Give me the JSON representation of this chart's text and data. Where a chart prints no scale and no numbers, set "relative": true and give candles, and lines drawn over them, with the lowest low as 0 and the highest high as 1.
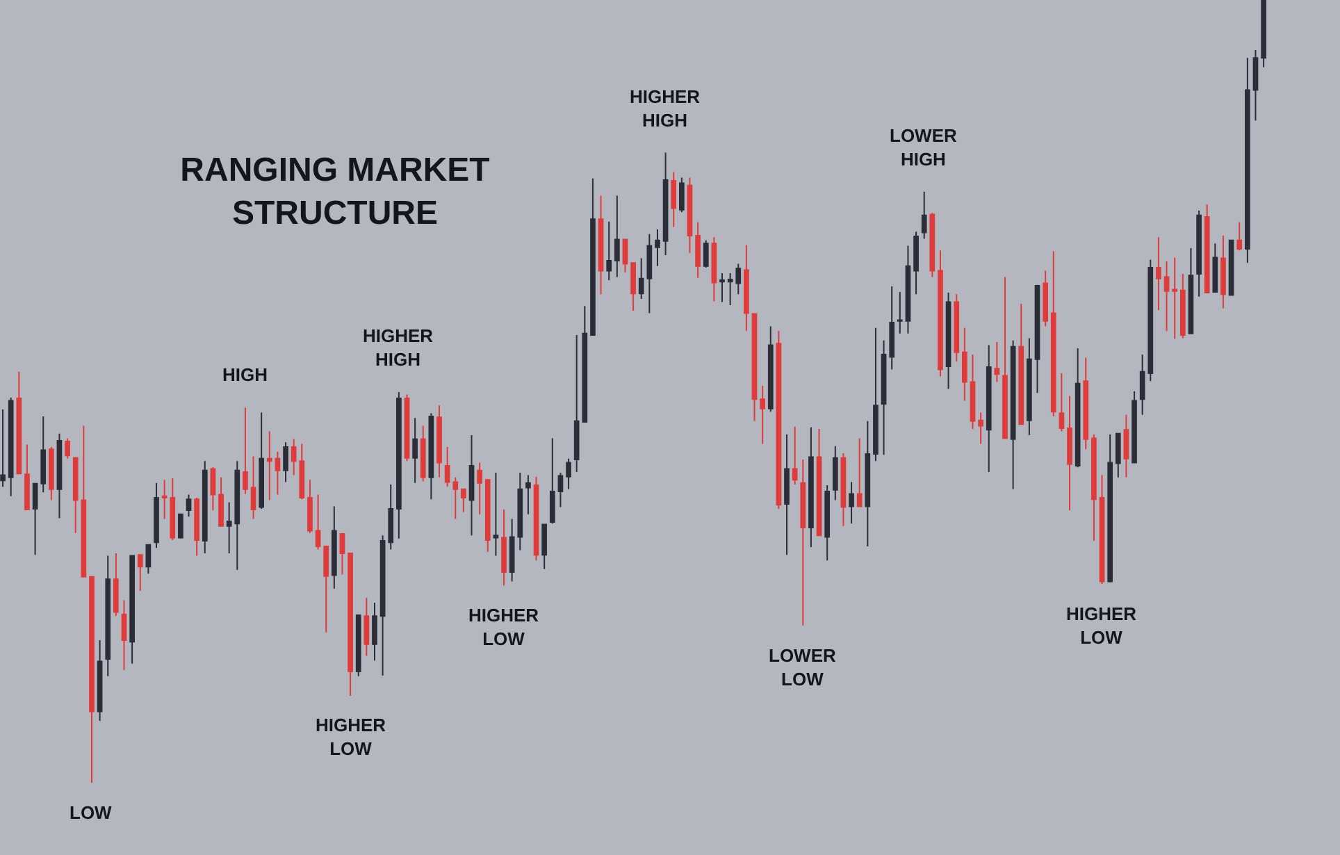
{
  "chart_data": {
    "type": "candlestick",
    "title": "RANGING MARKET\nSTRUCTURE",
    "relative": true,
    "categories": [
      null,
      null,
      null,
      null,
      null,
      null,
      null,
      null,
      null,
      null,
      null,
      null,
      null,
      null,
      null,
      null,
      null,
      null,
      null,
      null,
      null,
      null,
      null,
      null,
      null,
      null,
      null,
      null,
      null,
      null,
      null,
      null,
      null,
      null,
      null,
      null,
      null,
      null,
      null,
      null,
      null,
      null,
      null,
      null,
      null,
      null,
      null,
      null,
      null,
      null,
      null,
      null,
      null,
      null,
      null,
      null,
      null,
      null,
      null,
      null,
      null,
      null,
      null,
      null,
      null,
      null,
      null,
      null,
      null,
      null,
      null,
      null,
      null,
      null,
      null,
      null,
      null,
      null,
      null,
      null,
      null,
      null,
      null,
      null,
      null,
      null,
      null,
      null,
      null,
      null,
      null,
      null,
      null,
      null,
      null,
      null,
      null,
      null,
      null,
      null,
      null,
      null,
      null,
      null,
      null,
      null,
      null,
      null,
      null,
      null,
      null,
      null,
      null,
      null,
      null,
      null,
      null,
      null,
      null,
      null,
      null,
      null,
      null,
      null,
      null,
      null,
      null,
      null,
      null,
      null,
      null,
      null,
      null,
      null,
      null,
      null,
      null,
      null,
      null,
      null,
      null,
      null,
      null,
      null,
      null,
      null,
      null,
      null,
      null,
      null,
      null,
      null,
      null,
      null,
      null,
      null,
      null
    ],
    "ohlc": [
      [
        0.386,
        0.477,
        0.378,
        0.393
      ],
      [
        0.39,
        0.492,
        0.366,
        0.488
      ],
      [
        0.491,
        0.525,
        0.395,
        0.395
      ],
      [
        0.394,
        0.432,
        0.349,
        0.349
      ],
      [
        0.35,
        0.382,
        0.291,
        0.382
      ],
      [
        0.382,
        0.468,
        0.371,
        0.425
      ],
      [
        0.426,
        0.429,
        0.361,
        0.375
      ],
      [
        0.375,
        0.446,
        0.338,
        0.437
      ],
      [
        0.436,
        0.44,
        0.414,
        0.418
      ],
      [
        0.415,
        0.415,
        0.319,
        0.361
      ],
      [
        0.361,
        0.456,
        0.263,
        0.263
      ],
      [
        0.263,
        0.263,
        0,
        0.091
      ],
      [
        0.091,
        0.182,
        0.079,
        0.155
      ],
      [
        0.158,
        0.29,
        0.136,
        0.26
      ],
      [
        0.26,
        0.293,
        0.213,
        0.218
      ],
      [
        0.215,
        0.233,
        0.144,
        0.182
      ],
      [
        0.18,
        0.29,
        0.152,
        0.29
      ],
      [
        0.291,
        0.291,
        0.245,
        0.276
      ],
      [
        0.276,
        0.304,
        0.267,
        0.304
      ],
      [
        0.307,
        0.383,
        0.3,
        0.364
      ],
      [
        0.366,
        0.387,
        0.337,
        0.364
      ],
      [
        0.364,
        0.389,
        0.31,
        0.313
      ],
      [
        0.313,
        0.343,
        0.312,
        0.343
      ],
      [
        0.348,
        0.368,
        0.34,
        0.362
      ],
      [
        0.362,
        0.364,
        0.29,
        0.31
      ],
      [
        0.309,
        0.411,
        0.293,
        0.399
      ],
      [
        0.401,
        0.403,
        0.348,
        0.368
      ],
      [
        0.368,
        0.39,
        0.328,
        0.328
      ],
      [
        0.328,
        0.358,
        0.293,
        0.334
      ],
      [
        0.331,
        0.411,
        0.272,
        0.399
      ],
      [
        0.397,
        0.479,
        0.369,
        0.375
      ],
      [
        0.377,
        0.417,
        0.337,
        0.349
      ],
      [
        0.352,
        0.473,
        0.35,
        0.414
      ],
      [
        0.414,
        0.449,
        0.361,
        0.411
      ],
      [
        0.414,
        0.423,
        0.368,
        0.399
      ],
      [
        0.399,
        0.435,
        0.384,
        0.429
      ],
      [
        0.429,
        0.439,
        0.393,
        0.411
      ],
      [
        0.411,
        0.433,
        0.362,
        0.364
      ],
      [
        0.364,
        0.387,
        0.319,
        0.322
      ],
      [
        0.322,
        0.368,
        0.298,
        0.302
      ],
      [
        0.302,
        0.302,
        0.192,
        0.264
      ],
      [
        0.265,
        0.353,
        0.248,
        0.322
      ],
      [
        0.318,
        0.318,
        0.266,
        0.293
      ],
      [
        0.293,
        0.293,
        0.111,
        0.142
      ],
      [
        0.142,
        0.214,
        0.136,
        0.214
      ],
      [
        0.213,
        0.236,
        0.162,
        0.177
      ],
      [
        0.177,
        0.23,
        0.156,
        0.213
      ],
      [
        0.213,
        0.316,
        0.137,
        0.309
      ],
      [
        0.307,
        0.381,
        0.298,
        0.35
      ],
      [
        0.35,
        0.499,
        0.312,
        0.491
      ],
      [
        0.491,
        0.496,
        0.411,
        0.415
      ],
      [
        0.415,
        0.466,
        0.383,
        0.439
      ],
      [
        0.439,
        0.456,
        0.385,
        0.39
      ],
      [
        0.39,
        0.472,
        0.362,
        0.468
      ],
      [
        0.467,
        0.482,
        0.39,
        0.409
      ],
      [
        0.405,
        0.429,
        0.378,
        0.384
      ],
      [
        0.384,
        0.39,
        0.337,
        0.375
      ],
      [
        0.375,
        0.375,
        0.346,
        0.364
      ],
      [
        0.361,
        0.444,
        0.316,
        0.405
      ],
      [
        0.399,
        0.409,
        0.343,
        0.383
      ],
      [
        0.387,
        0.387,
        0.295,
        0.31
      ],
      [
        0.313,
        0.396,
        0.29,
        0.316
      ],
      [
        0.313,
        0.349,
        0.252,
        0.269
      ],
      [
        0.269,
        0.337,
        0.257,
        0.314
      ],
      [
        0.314,
        0.396,
        0.297,
        0.375
      ],
      [
        0.377,
        0.393,
        0.343,
        0.383
      ],
      [
        0.38,
        0.391,
        0.284,
        0.291
      ],
      [
        0.291,
        0.33,
        0.273,
        0.33
      ],
      [
        0.333,
        0.44,
        0.331,
        0.372
      ],
      [
        0.372,
        0.396,
        0.352,
        0.392
      ],
      [
        0.391,
        0.414,
        0.375,
        0.409
      ],
      [
        0.413,
        0.572,
        0.397,
        0.462
      ],
      [
        0.461,
        0.609,
        0.461,
        0.574
      ],
      [
        0.572,
        0.772,
        0.572,
        0.72
      ],
      [
        0.72,
        0.75,
        0.624,
        0.654
      ],
      [
        0.654,
        0.717,
        0.642,
        0.667
      ],
      [
        0.667,
        0.75,
        0.646,
        0.694
      ],
      [
        0.694,
        0.694,
        0.652,
        0.663
      ],
      [
        0.664,
        0.664,
        0.603,
        0.625
      ],
      [
        0.625,
        0.67,
        0.618,
        0.644
      ],
      [
        0.644,
        0.701,
        0.6,
        0.686
      ],
      [
        0.684,
        0.707,
        0.66,
        0.693
      ],
      [
        0.692,
        0.805,
        0.674,
        0.77
      ],
      [
        0.769,
        0.78,
        0.71,
        0.734
      ],
      [
        0.732,
        0.773,
        0.729,
        0.766
      ],
      [
        0.763,
        0.773,
        0.677,
        0.699
      ],
      [
        0.699,
        0.716,
        0.645,
        0.66
      ],
      [
        0.66,
        0.693,
        0.658,
        0.689
      ],
      [
        0.689,
        0.697,
        0.615,
        0.639
      ],
      [
        0.64,
        0.651,
        0.614,
        0.642
      ],
      [
        0.64,
        0.651,
        0.61,
        0.643
      ],
      [
        0.638,
        0.663,
        0.624,
        0.657
      ],
      [
        0.655,
        0.687,
        0.577,
        0.6
      ],
      [
        0.599,
        0.599,
        0.462,
        0.49
      ],
      [
        0.49,
        0.507,
        0.433,
        0.478
      ],
      [
        0.478,
        0.583,
        0.474,
        0.559
      ],
      [
        0.561,
        0.577,
        0.35,
        0.355
      ],
      [
        0.356,
        0.445,
        0.291,
        0.401
      ],
      [
        0.401,
        0.455,
        0.381,
        0.387
      ],
      [
        0.383,
        0.413,
        0.201,
        0.326
      ],
      [
        0.326,
        0.454,
        0.301,
        0.416
      ],
      [
        0.416,
        0.452,
        0.316,
        0.316
      ],
      [
        0.314,
        0.38,
        0.284,
        0.372
      ],
      [
        0.374,
        0.43,
        0.361,
        0.415
      ],
      [
        0.415,
        0.421,
        0.328,
        0.352
      ],
      [
        0.353,
        0.384,
        0.331,
        0.369
      ],
      [
        0.369,
        0.44,
        0.352,
        0.353
      ],
      [
        0.353,
        0.462,
        0.302,
        0.42
      ],
      [
        0.42,
        0.581,
        0.411,
        0.482
      ],
      [
        0.484,
        0.565,
        0.419,
        0.547
      ],
      [
        0.544,
        0.634,
        0.528,
        0.588
      ],
      [
        0.59,
        0.627,
        0.574,
        0.591
      ],
      [
        0.59,
        0.686,
        0.574,
        0.66
      ],
      [
        0.654,
        0.704,
        0.624,
        0.698
      ],
      [
        0.703,
        0.755,
        0.695,
        0.725
      ],
      [
        0.726,
        0.728,
        0.646,
        0.654
      ],
      [
        0.654,
        0.68,
        0.519,
        0.528
      ],
      [
        0.532,
        0.626,
        0.503,
        0.614
      ],
      [
        0.614,
        0.624,
        0.538,
        0.55
      ],
      [
        0.55,
        0.581,
        0.488,
        0.512
      ],
      [
        0.512,
        0.547,
        0.452,
        0.462
      ],
      [
        0.463,
        0.473,
        0.433,
        0.456
      ],
      [
        0.451,
        0.559,
        0.397,
        0.531
      ],
      [
        0.529,
        0.563,
        0.512,
        0.522
      ],
      [
        0.52,
        0.646,
        0.44,
        0.44
      ],
      [
        0.439,
        0.565,
        0.375,
        0.557
      ],
      [
        0.557,
        0.612,
        0.458,
        0.458
      ],
      [
        0.463,
        0.568,
        0.444,
        0.541
      ],
      [
        0.541,
        0.636,
        0.498,
        0.635
      ],
      [
        0.638,
        0.654,
        0.583,
        0.59
      ],
      [
        0.6,
        0.679,
        0.468,
        0.474
      ],
      [
        0.472,
        0.523,
        0.449,
        0.453
      ],
      [
        0.453,
        0.494,
        0.348,
        0.407
      ],
      [
        0.405,
        0.555,
        0.403,
        0.51
      ],
      [
        0.513,
        0.543,
        0.426,
        0.439
      ],
      [
        0.44,
        0.445,
        0.309,
        0.362
      ],
      [
        0.364,
        0.393,
        0.254,
        0.257
      ],
      [
        0.257,
        0.445,
        0.256,
        0.409
      ],
      [
        0.408,
        0.446,
        0.39,
        0.446
      ],
      [
        0.451,
        0.47,
        0.39,
        0.414
      ],
      [
        0.409,
        0.5,
        0.408,
        0.488
      ],
      [
        0.49,
        0.547,
        0.47,
        0.525
      ],
      [
        0.523,
        0.668,
        0.513,
        0.658
      ],
      [
        0.658,
        0.697,
        0.604,
        0.644
      ],
      [
        0.646,
        0.666,
        0.577,
        0.628
      ],
      [
        0.63,
        0.671,
        0.567,
        0.628
      ],
      [
        0.629,
        0.65,
        0.568,
        0.572
      ],
      [
        0.574,
        0.683,
        0.574,
        0.648
      ],
      [
        0.65,
        0.731,
        0.621,
        0.725
      ],
      [
        0.723,
        0.739,
        0.626,
        0.626
      ],
      [
        0.627,
        0.689,
        0.627,
        0.671
      ],
      [
        0.67,
        0.699,
        0.606,
        0.624
      ],
      [
        0.623,
        0.693,
        0.623,
        0.693
      ],
      [
        0.693,
        0.716,
        0.68,
        0.682
      ],
      [
        0.682,
        0.926,
        0.664,
        0.885
      ],
      [
        0.885,
        0.936,
        0.846,
        0.926
      ],
      [
        0.926,
        1,
        0.914,
        1
      ]
    ],
    "colors": [
      "#2b2e38",
      "#2b2e38",
      "#e03b3b",
      "#e03b3b",
      "#2b2e38",
      "#2b2e38",
      "#e03b3b",
      "#2b2e38",
      "#e03b3b",
      "#e03b3b",
      "#e03b3b",
      "#e03b3b",
      "#2b2e38",
      "#2b2e38",
      "#e03b3b",
      "#e03b3b",
      "#2b2e38",
      "#e03b3b",
      "#2b2e38",
      "#2b2e38",
      "#e03b3b",
      "#e03b3b",
      "#2b2e38",
      "#2b2e38",
      "#e03b3b",
      "#2b2e38",
      "#e03b3b",
      "#e03b3b",
      "#2b2e38",
      "#2b2e38",
      "#e03b3b",
      "#e03b3b",
      "#2b2e38",
      "#e03b3b",
      "#e03b3b",
      "#2b2e38",
      "#e03b3b",
      "#e03b3b",
      "#e03b3b",
      "#e03b3b",
      "#e03b3b",
      "#2b2e38",
      "#e03b3b",
      "#e03b3b",
      "#2b2e38",
      "#e03b3b",
      "#2b2e38",
      "#2b2e38",
      "#2b2e38",
      "#2b2e38",
      "#e03b3b",
      "#2b2e38",
      "#e03b3b",
      "#2b2e38",
      "#e03b3b",
      "#e03b3b",
      "#e03b3b",
      "#e03b3b",
      "#2b2e38",
      "#e03b3b",
      "#e03b3b",
      "#2b2e38",
      "#e03b3b",
      "#2b2e38",
      "#2b2e38",
      "#2b2e38",
      "#e03b3b",
      "#2b2e38",
      "#2b2e38",
      "#2b2e38",
      "#2b2e38",
      "#2b2e38",
      "#2b2e38",
      "#2b2e38",
      "#e03b3b",
      "#2b2e38",
      "#2b2e38",
      "#e03b3b",
      "#e03b3b",
      "#2b2e38",
      "#2b2e38",
      "#2b2e38",
      "#2b2e38",
      "#e03b3b",
      "#2b2e38",
      "#e03b3b",
      "#e03b3b",
      "#2b2e38",
      "#e03b3b",
      "#2b2e38",
      "#2b2e38",
      "#2b2e38",
      "#e03b3b",
      "#e03b3b",
      "#e03b3b",
      "#2b2e38",
      "#e03b3b",
      "#2b2e38",
      "#e03b3b",
      "#e03b3b",
      "#2b2e38",
      "#e03b3b",
      "#2b2e38",
      "#2b2e38",
      "#e03b3b",
      "#2b2e38",
      "#e03b3b",
      "#2b2e38",
      "#2b2e38",
      "#2b2e38",
      "#2b2e38",
      "#2b2e38",
      "#2b2e38",
      "#2b2e38",
      "#2b2e38",
      "#e03b3b",
      "#e03b3b",
      "#2b2e38",
      "#e03b3b",
      "#e03b3b",
      "#e03b3b",
      "#e03b3b",
      "#2b2e38",
      "#e03b3b",
      "#e03b3b",
      "#2b2e38",
      "#e03b3b",
      "#2b2e38",
      "#2b2e38",
      "#e03b3b",
      "#e03b3b",
      "#e03b3b",
      "#e03b3b",
      "#2b2e38",
      "#e03b3b",
      "#e03b3b",
      "#e03b3b",
      "#2b2e38",
      "#2b2e38",
      "#e03b3b",
      "#2b2e38",
      "#2b2e38",
      "#2b2e38",
      "#e03b3b",
      "#e03b3b",
      "#e03b3b",
      "#e03b3b",
      "#2b2e38",
      "#2b2e38",
      "#e03b3b",
      "#2b2e38",
      "#e03b3b",
      "#2b2e38",
      "#e03b3b",
      "#2b2e38",
      "#2b2e38",
      "#2b2e38"
    ],
    "annotations": [
      {
        "text": "LOW",
        "y": 0
      },
      {
        "text": "HIGH",
        "y": 0.479
      },
      {
        "text": "HIGHER\nLOW",
        "y": 0.111
      },
      {
        "text": "HIGHER\nHIGH",
        "y": 0.499
      },
      {
        "text": "HIGHER\nLOW",
        "y": 0.252
      },
      {
        "text": "HIGHER\nHIGH",
        "y": 0.805
      },
      {
        "text": "LOWER\nLOW",
        "y": 0.201
      },
      {
        "text": "LOWER\nHIGH",
        "y": 0.755
      },
      {
        "text": "HIGHER\nLOW",
        "y": 0.254
      }
    ]
  }
}
